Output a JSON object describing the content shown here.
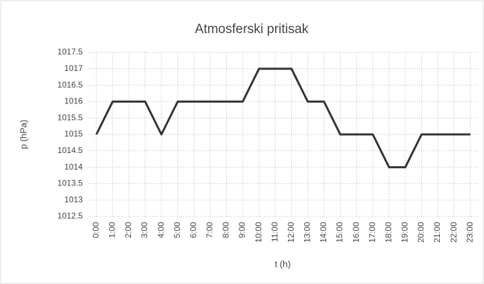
{
  "chart_data": {
    "type": "line",
    "title": "Atmosferski pritisak",
    "x_label": "t (h)",
    "y_label": "p (hPa)",
    "categories": [
      "0:00",
      "1:00",
      "2:00",
      "3:00",
      "4:00",
      "5:00",
      "6:00",
      "7:00",
      "8:00",
      "9:00",
      "10:00",
      "11:00",
      "12:00",
      "13:00",
      "14:00",
      "15:00",
      "16:00",
      "17:00",
      "18:00",
      "19:00",
      "20:00",
      "21:00",
      "22:00",
      "23:00"
    ],
    "series": [
      {
        "color": "#333333",
        "values": [
          1015,
          1016,
          1016,
          1016,
          1015,
          1016,
          1016,
          1016,
          1016,
          1016,
          1017,
          1017,
          1017,
          1016,
          1016,
          1015,
          1015,
          1015,
          1014,
          1014,
          1015,
          1015,
          1015,
          1015
        ]
      }
    ],
    "ylim": [
      1012.5,
      1017.5
    ],
    "yticks": [
      1012.5,
      1013,
      1013.5,
      1014,
      1014.5,
      1015,
      1015.5,
      1016,
      1016.5,
      1017,
      1017.5
    ],
    "grid": true
  }
}
